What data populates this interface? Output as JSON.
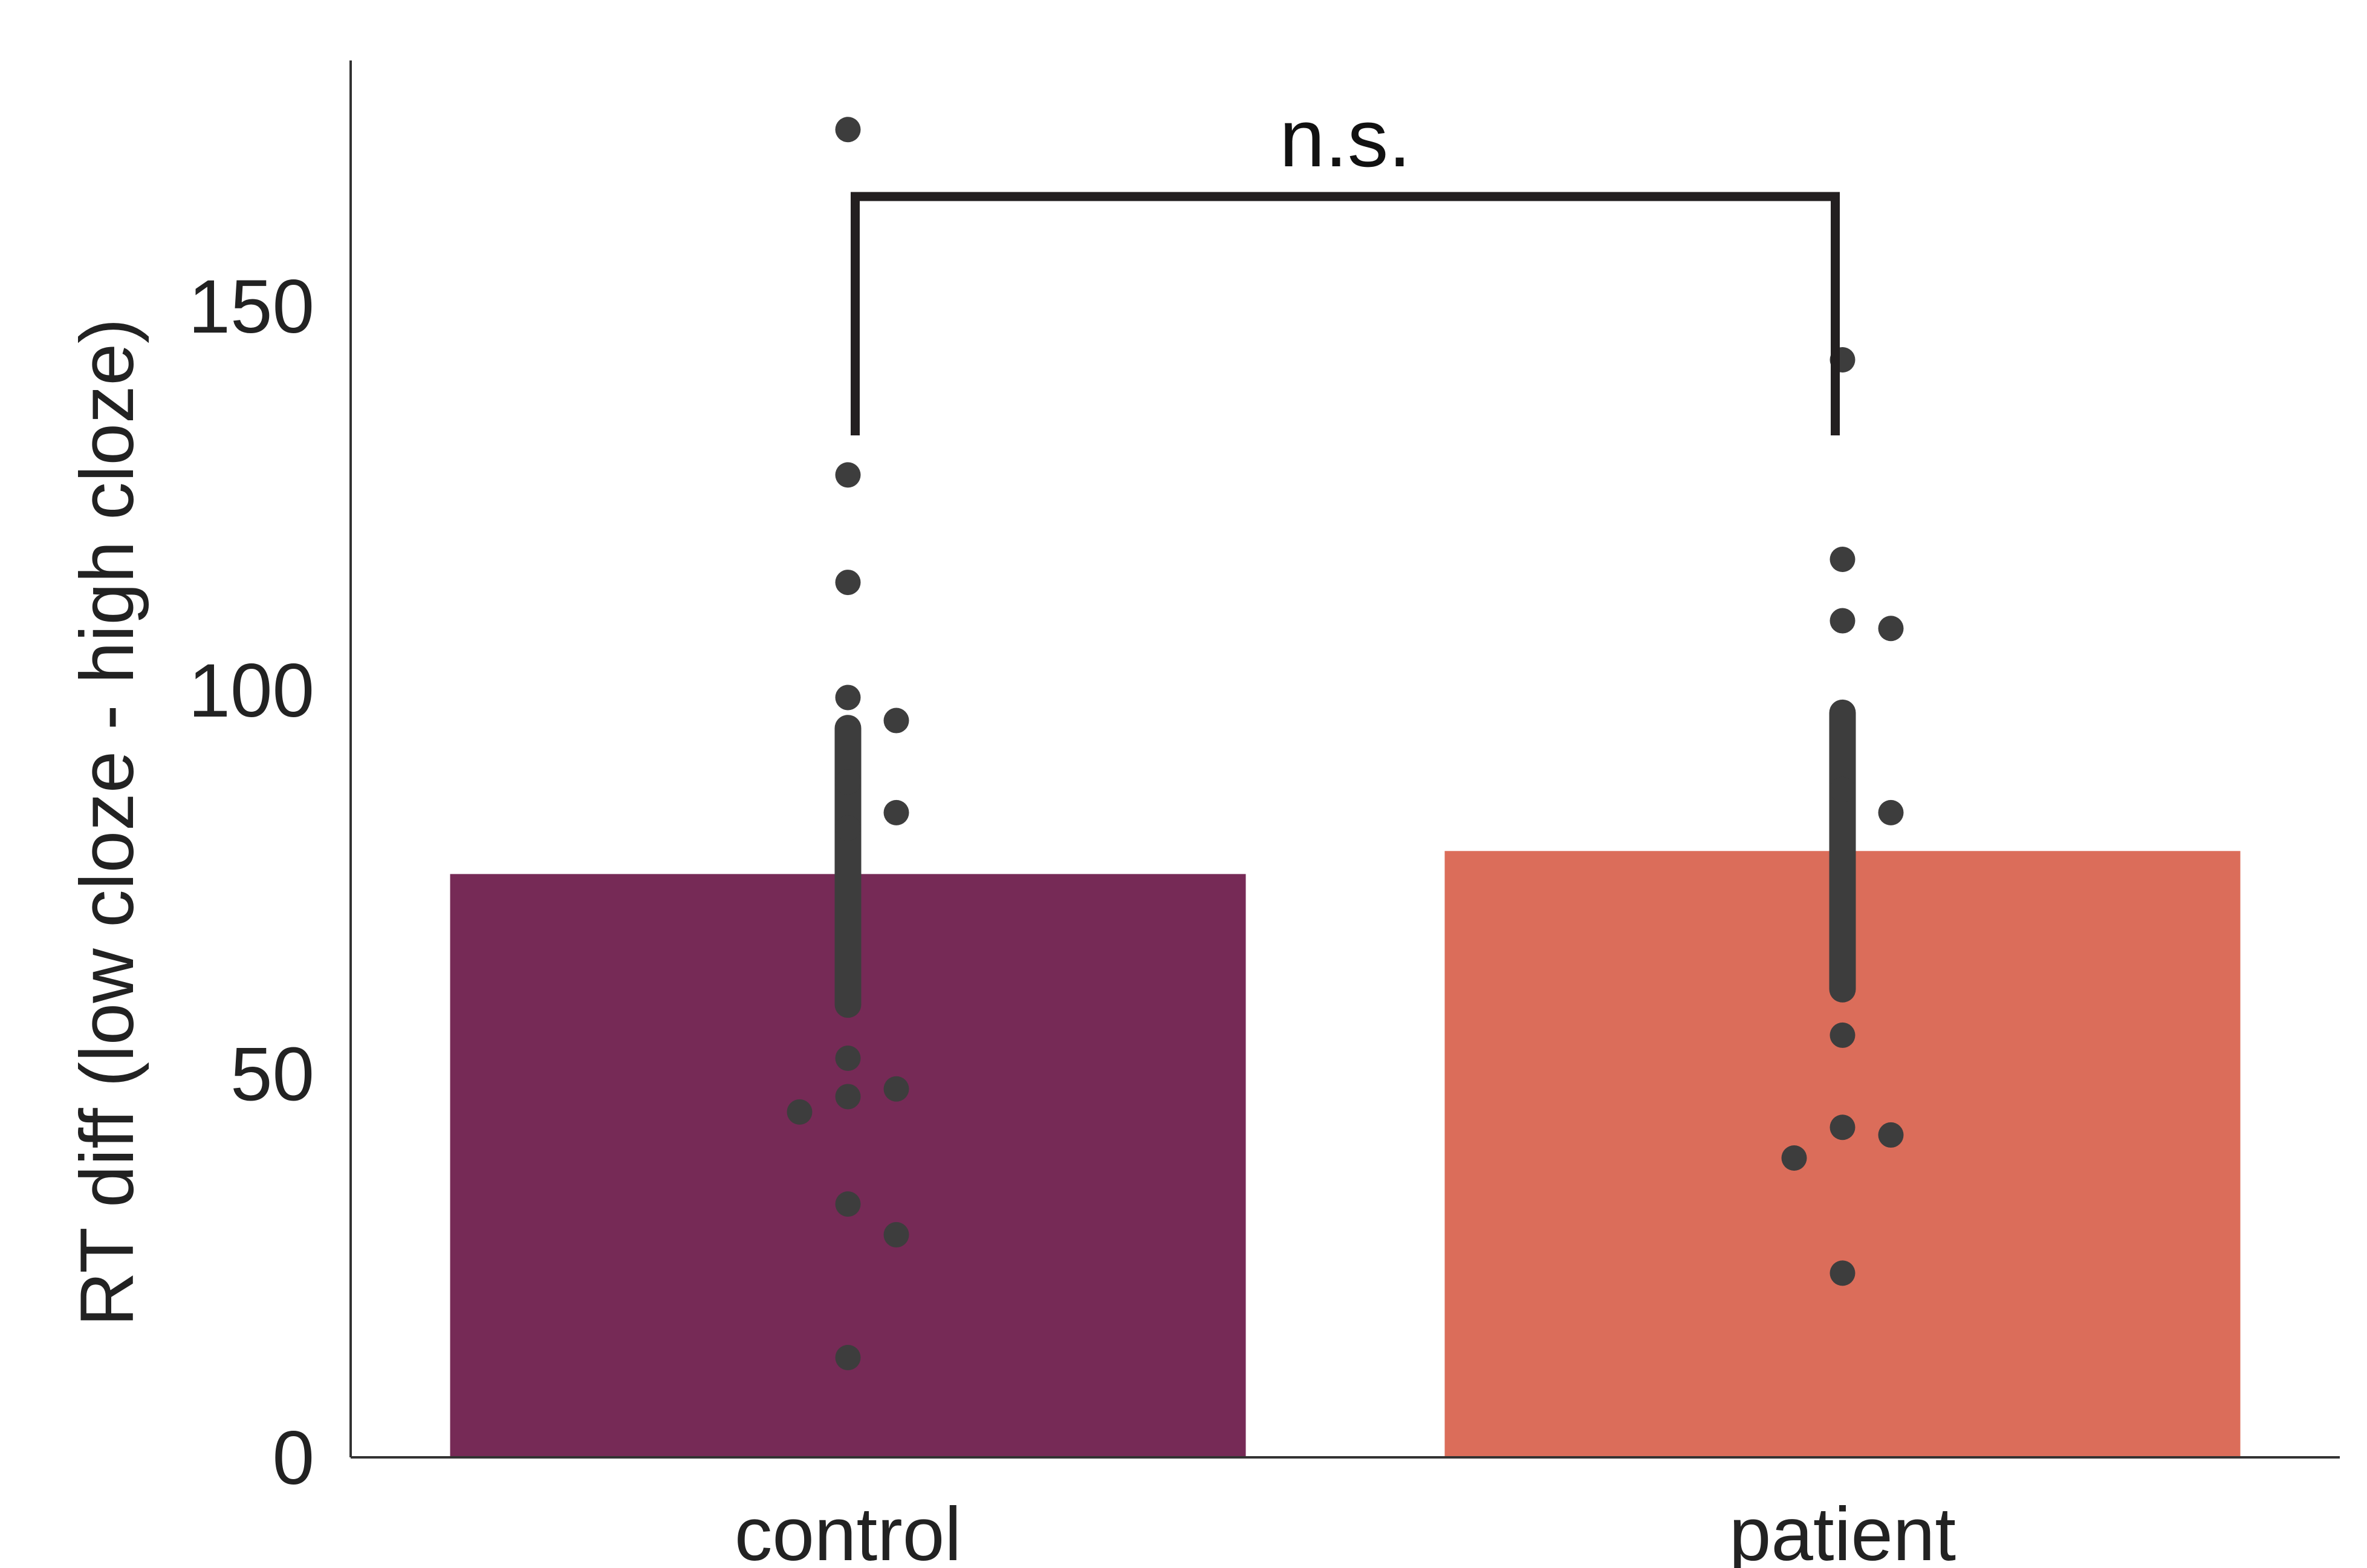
{
  "chart_data": {
    "type": "bar",
    "title": "",
    "xlabel": "",
    "ylabel": "RT diff (low cloze - high cloze)",
    "ylim": [
      0,
      182
    ],
    "yticks": [
      0,
      50,
      100,
      150
    ],
    "categories": [
      "control",
      "patient"
    ],
    "values": [
      76,
      79
    ],
    "bar_colors": [
      "#762A56",
      "#DB6D5A"
    ],
    "error_bars": [
      {
        "low": 59,
        "high": 95
      },
      {
        "low": 61,
        "high": 97
      }
    ],
    "points": [
      [
        173,
        128,
        114,
        99,
        96,
        88,
        84,
        82,
        52,
        48,
        47,
        45,
        33,
        29,
        13
      ],
      [
        143,
        117,
        109,
        108,
        87,
        84,
        55,
        43,
        42,
        39,
        24
      ]
    ],
    "point_color": "#3D3D3D",
    "grid": false,
    "annotation": {
      "label": "n.s.",
      "between": [
        "control",
        "patient"
      ]
    }
  }
}
